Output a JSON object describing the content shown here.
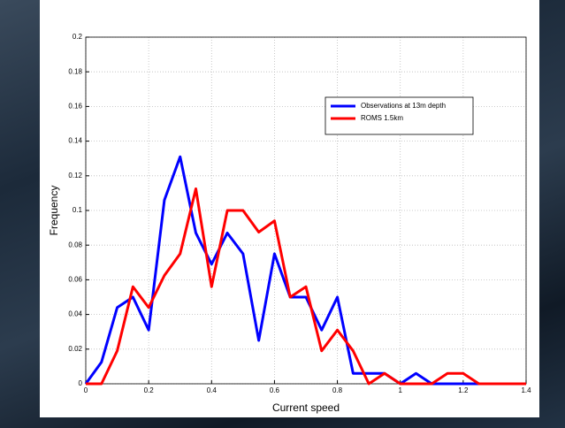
{
  "chart_data": {
    "type": "line",
    "xlabel": "Current speed",
    "ylabel": "Frequency",
    "x": [
      0,
      0.05,
      0.1,
      0.15,
      0.2,
      0.25,
      0.3,
      0.35,
      0.4,
      0.45,
      0.5,
      0.55,
      0.6,
      0.65,
      0.7,
      0.75,
      0.8,
      0.85,
      0.9,
      0.95,
      1.0,
      1.05,
      1.1,
      1.15,
      1.2,
      1.25,
      1.3,
      1.35,
      1.4
    ],
    "series": [
      {
        "name": "Observations at 13m depth",
        "color": "#0000ff",
        "values": [
          0,
          0.0125,
          0.044,
          0.05,
          0.031,
          0.106,
          0.131,
          0.087,
          0.069,
          0.087,
          0.075,
          0.025,
          0.075,
          0.05,
          0.05,
          0.031,
          0.05,
          0.006,
          0.006,
          0.006,
          0,
          0.006,
          0,
          0,
          0,
          0,
          0,
          0,
          0
        ]
      },
      {
        "name": "ROMS 1.5km",
        "color": "#ff0000",
        "values": [
          0,
          0,
          0.019,
          0.056,
          0.044,
          0.0625,
          0.075,
          0.1125,
          0.056,
          0.1,
          0.1,
          0.0875,
          0.094,
          0.05,
          0.056,
          0.019,
          0.031,
          0.019,
          0,
          0.006,
          0,
          0,
          0,
          0.006,
          0.006,
          0,
          0,
          0,
          0
        ]
      }
    ],
    "xlim": [
      0,
      1.4
    ],
    "xticks": [
      0,
      0.2,
      0.4,
      0.6,
      0.8,
      1,
      1.2,
      1.4
    ],
    "ylim": [
      0,
      0.2
    ],
    "yticks": [
      0,
      0.02,
      0.04,
      0.06,
      0.08,
      0.1,
      0.12,
      0.14,
      0.16,
      0.18,
      0.2
    ],
    "grid": true,
    "legend_loc": "upper right"
  }
}
